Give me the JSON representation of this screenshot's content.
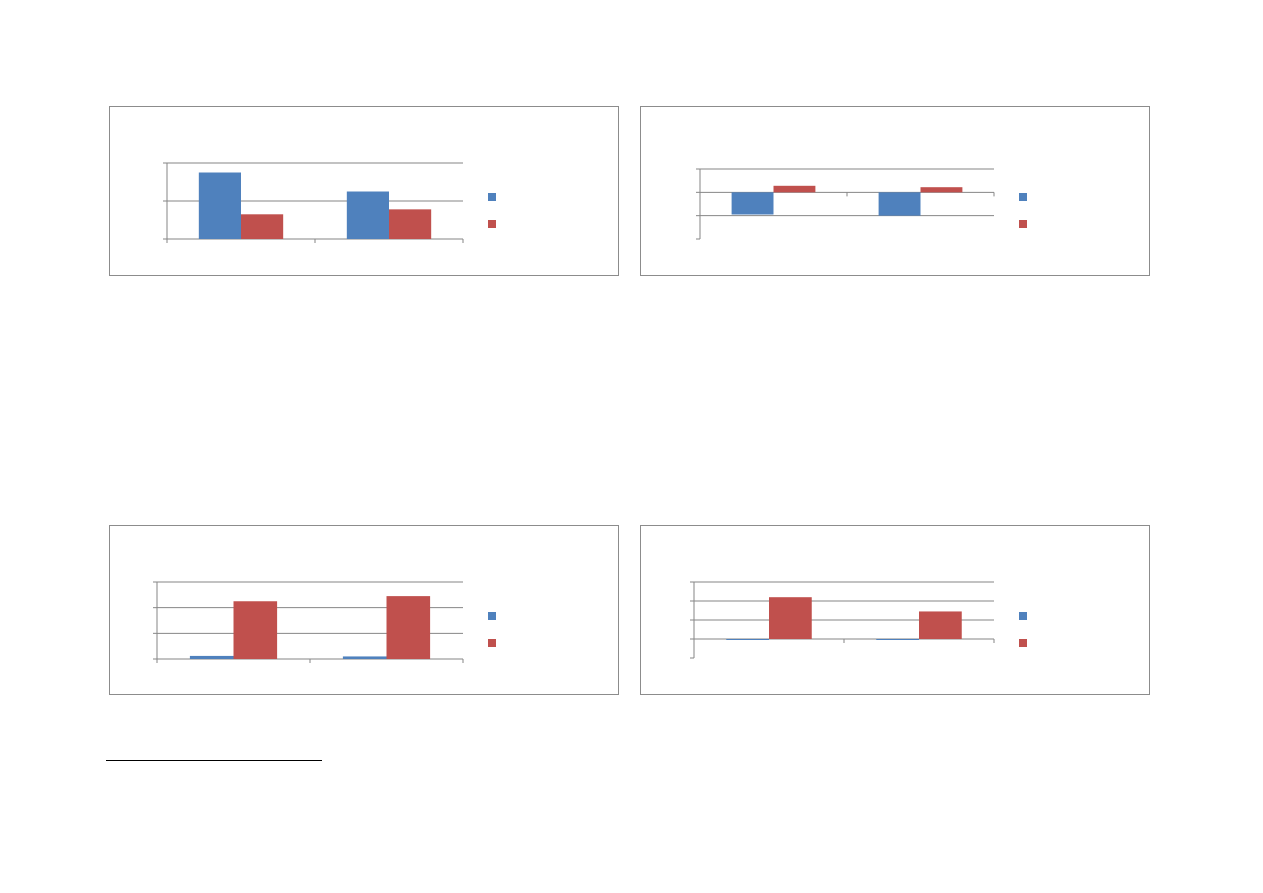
{
  "colors": {
    "series_a": "#4f81bd",
    "series_b": "#c0504d",
    "gridline": "#868686",
    "axis": "#868686",
    "border": "#8c8c8c"
  },
  "chart_data": [
    {
      "type": "bar",
      "categories": [
        "",
        ""
      ],
      "series": [
        {
          "values": [
            1.75,
            1.25
          ],
          "color": "#4f81bd"
        },
        {
          "values": [
            0.65,
            0.78
          ],
          "color": "#c0504d"
        }
      ],
      "ylim": [
        0,
        2
      ],
      "yticks": [
        0,
        1,
        2
      ],
      "grid": true,
      "legend": "right"
    },
    {
      "type": "bar",
      "categories": [
        "",
        ""
      ],
      "series": [
        {
          "values": [
            -0.95,
            -1.0
          ],
          "color": "#4f81bd"
        },
        {
          "values": [
            0.28,
            0.22
          ],
          "color": "#c0504d"
        }
      ],
      "ylim": [
        -2,
        1
      ],
      "yticks": [
        -2,
        -1,
        0,
        1
      ],
      "grid": true,
      "legend": "right"
    },
    {
      "type": "bar",
      "categories": [
        "",
        ""
      ],
      "series": [
        {
          "values": [
            0.12,
            0.1
          ],
          "color": "#4f81bd"
        },
        {
          "values": [
            2.25,
            2.45
          ],
          "color": "#c0504d"
        }
      ],
      "ylim": [
        0,
        3
      ],
      "yticks": [
        0,
        1,
        2,
        3
      ],
      "grid": true,
      "legend": "right"
    },
    {
      "type": "bar",
      "categories": [
        "",
        ""
      ],
      "series": [
        {
          "values": [
            -0.05,
            -0.05
          ],
          "color": "#4f81bd"
        },
        {
          "values": [
            2.2,
            1.45
          ],
          "color": "#c0504d"
        }
      ],
      "ylim": [
        -1,
        3
      ],
      "yticks": [
        -1,
        0,
        1,
        2,
        3
      ],
      "grid": true,
      "legend": "right"
    }
  ]
}
